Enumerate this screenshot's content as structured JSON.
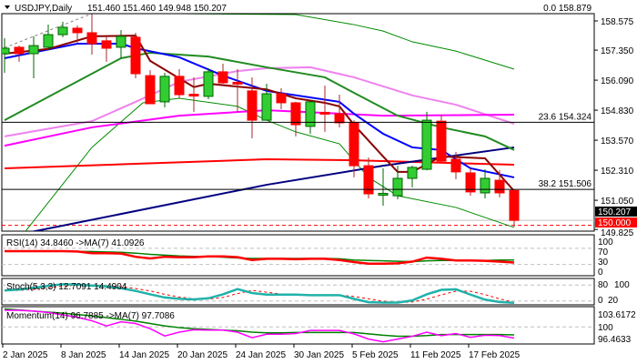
{
  "header": {
    "symbol": "USDJPY,Daily",
    "ohlc": "151.460 151.460 149.948 150.207"
  },
  "fib": [
    {
      "label": "0.0 158.879",
      "price": 158.879
    },
    {
      "label": "23.6 154.324",
      "price": 154.324
    },
    {
      "label": "38.2 151.506",
      "price": 151.506
    }
  ],
  "price_axis": [
    "158.575",
    "157.350",
    "156.090",
    "154.830",
    "153.570",
    "152.310",
    "151.050",
    "149.825"
  ],
  "price_tags": {
    "current": "150.207",
    "alert": "150.000"
  },
  "panels": {
    "rsi": {
      "title": "RSI(14) 34.8460  ->MA(7) 41.0926",
      "levels": [
        "100",
        "70",
        "30",
        "0"
      ]
    },
    "stoch": {
      "title": "Stoch(5,3,3) 12.7091 14.4904",
      "levels": [
        "80",
        "100",
        "0",
        "20"
      ]
    },
    "momentum": {
      "title": "Momentum(14) 96.7885  ->MA(7) 97.7086",
      "levels": [
        "103.6172",
        "100",
        "96.4633"
      ]
    }
  },
  "colors": {
    "bull": "#32cd32",
    "bear": "#ff0000",
    "wick_bull": "#006400",
    "wick_bear": "#a52a2a",
    "alert": "#ff0000"
  },
  "chart_data": {
    "type": "candlestick",
    "title": "USDJPY,Daily",
    "date_labels": [
      {
        "bar": 0,
        "text": "2 Jan 2025"
      },
      {
        "bar": 4,
        "text": "8 Jan 2025"
      },
      {
        "bar": 8,
        "text": "14 Jan 2025"
      },
      {
        "bar": 12,
        "text": "20 Jan 2025"
      },
      {
        "bar": 16,
        "text": "24 Jan 2025"
      },
      {
        "bar": 20,
        "text": "30 Jan 2025"
      },
      {
        "bar": 24,
        "text": "5 Feb 2025"
      },
      {
        "bar": 28,
        "text": "11 Feb 2025"
      },
      {
        "bar": 32,
        "text": "17 Feb 2025"
      }
    ],
    "ylim": [
      149.8,
      158.88
    ],
    "candles": [
      [
        157.2,
        157.85,
        156.4,
        157.43
      ],
      [
        157.47,
        157.54,
        156.86,
        157.2
      ],
      [
        157.2,
        157.93,
        156.17,
        157.54
      ],
      [
        157.47,
        158.42,
        157.35,
        158.0
      ],
      [
        158.0,
        158.54,
        157.89,
        158.31
      ],
      [
        158.27,
        158.38,
        157.62,
        158.08
      ],
      [
        158.08,
        158.88,
        157.16,
        157.62
      ],
      [
        157.74,
        157.93,
        156.86,
        157.43
      ],
      [
        157.47,
        158.19,
        157.01,
        157.93
      ],
      [
        157.89,
        158.08,
        156.17,
        156.36
      ],
      [
        156.28,
        156.51,
        155.1,
        155.1
      ],
      [
        155.18,
        156.4,
        154.95,
        156.25
      ],
      [
        156.25,
        156.55,
        155.33,
        155.48
      ],
      [
        155.5,
        156.21,
        154.76,
        155.48
      ],
      [
        155.41,
        156.59,
        155.29,
        156.44
      ],
      [
        156.44,
        156.78,
        155.94,
        155.98
      ],
      [
        156.0,
        156.55,
        154.76,
        155.98
      ],
      [
        155.64,
        156.21,
        153.65,
        154.41
      ],
      [
        154.41,
        155.94,
        154.41,
        155.52
      ],
      [
        155.52,
        155.75,
        154.87,
        155.14
      ],
      [
        155.14,
        155.18,
        153.73,
        154.22
      ],
      [
        154.15,
        155.18,
        153.84,
        155.18
      ],
      [
        154.74,
        155.86,
        153.92,
        154.72
      ],
      [
        154.68,
        155.48,
        154.11,
        154.3
      ],
      [
        154.3,
        154.41,
        152.01,
        152.5
      ],
      [
        152.5,
        152.85,
        151.13,
        151.32
      ],
      [
        151.32,
        152.39,
        150.82,
        151.34
      ],
      [
        151.24,
        152.5,
        151.09,
        151.97
      ],
      [
        151.97,
        152.5,
        151.59,
        152.43
      ],
      [
        152.35,
        154.76,
        152.31,
        154.41
      ],
      [
        154.37,
        154.64,
        152.66,
        152.69
      ],
      [
        152.77,
        153.08,
        151.93,
        152.24
      ],
      [
        152.2,
        152.39,
        151.24,
        151.4
      ],
      [
        151.36,
        152.35,
        151.13,
        151.97
      ],
      [
        151.89,
        152.31,
        151.17,
        151.36
      ],
      [
        151.46,
        151.46,
        149.948,
        150.207
      ]
    ],
    "overlays": [
      {
        "color": "#008b00",
        "width": 1,
        "points": [
          [
            9,
            159.0
          ],
          [
            12,
            158.88
          ],
          [
            20,
            158.84
          ],
          [
            24,
            158.42
          ],
          [
            26,
            158.15
          ],
          [
            28,
            157.7
          ],
          [
            31,
            157.31
          ],
          [
            35,
            156.55
          ]
        ]
      },
      {
        "color": "#008b00",
        "width": 1,
        "points": [
          [
            1.4,
            149.72
          ],
          [
            6,
            153.27
          ],
          [
            9.5,
            155.14
          ],
          [
            12,
            155.33
          ],
          [
            16,
            154.99
          ],
          [
            18,
            154.41
          ],
          [
            20,
            153.92
          ],
          [
            23,
            153.42
          ],
          [
            25,
            152.01
          ],
          [
            27,
            151.24
          ],
          [
            31,
            150.75
          ],
          [
            35,
            149.91
          ]
        ]
      },
      {
        "color": "#ee82ee",
        "width": 2,
        "points": [
          [
            0,
            153.73
          ],
          [
            6,
            154.37
          ],
          [
            9,
            155.18
          ],
          [
            12,
            156.02
          ],
          [
            16,
            156.47
          ],
          [
            18,
            156.59
          ],
          [
            21,
            156.63
          ],
          [
            24,
            156.21
          ],
          [
            28,
            155.45
          ],
          [
            31,
            155.06
          ],
          [
            35,
            154.26
          ]
        ]
      },
      {
        "color": "#ff00ff",
        "width": 2,
        "points": [
          [
            0,
            153.34
          ],
          [
            6,
            154.11
          ],
          [
            12,
            154.6
          ],
          [
            18,
            154.83
          ],
          [
            26,
            154.6
          ],
          [
            35,
            154.64
          ]
        ]
      },
      {
        "color": "#ff0000",
        "width": 2,
        "points": [
          [
            0,
            152.39
          ],
          [
            18,
            152.77
          ],
          [
            24,
            152.73
          ],
          [
            35,
            152.54
          ]
        ]
      },
      {
        "color": "#000080",
        "width": 2,
        "points": [
          [
            1,
            149.62
          ],
          [
            18,
            151.7
          ],
          [
            26,
            152.5
          ],
          [
            35,
            153.27
          ]
        ]
      },
      {
        "color": "#228b22",
        "width": 2,
        "points": [
          [
            0,
            154.41
          ],
          [
            4,
            155.71
          ],
          [
            8,
            157.01
          ],
          [
            10,
            157.24
          ],
          [
            14,
            157.08
          ],
          [
            18,
            156.63
          ],
          [
            22,
            156.21
          ],
          [
            24,
            155.56
          ],
          [
            27,
            154.6
          ],
          [
            30,
            154.11
          ],
          [
            33,
            153.73
          ],
          [
            35,
            153.16
          ]
        ]
      },
      {
        "color": "#0000ff",
        "width": 2,
        "points": [
          [
            0,
            157.01
          ],
          [
            5,
            157.62
          ],
          [
            8,
            157.62
          ],
          [
            9,
            157.43
          ],
          [
            12,
            157.05
          ],
          [
            15,
            156.28
          ],
          [
            18,
            155.64
          ],
          [
            23,
            155.18
          ],
          [
            24,
            154.68
          ],
          [
            26,
            153.84
          ],
          [
            28,
            153.27
          ],
          [
            30,
            153.16
          ],
          [
            32,
            152.39
          ],
          [
            35,
            152.01
          ]
        ]
      },
      {
        "color": "#8b0000",
        "width": 2,
        "points": [
          [
            0,
            157.2
          ],
          [
            3,
            157.4
          ],
          [
            6,
            157.93
          ],
          [
            9,
            157.96
          ],
          [
            10,
            156.9
          ],
          [
            13,
            155.8
          ],
          [
            14,
            155.94
          ],
          [
            18,
            155.7
          ],
          [
            20,
            155.33
          ],
          [
            22,
            155.14
          ],
          [
            23,
            154.99
          ],
          [
            24,
            154.22
          ],
          [
            26,
            152.89
          ],
          [
            27,
            152.24
          ],
          [
            28,
            152.24
          ],
          [
            30,
            152.89
          ],
          [
            33,
            152.81
          ],
          [
            35,
            151.44
          ]
        ]
      }
    ],
    "trendline": {
      "color": "#808080",
      "points": [
        [
          0,
          157.45
        ],
        [
          6,
          158.88
        ]
      ]
    },
    "rsi": {
      "values": [
        63,
        63,
        63,
        63,
        63,
        62,
        58,
        58,
        57,
        49,
        45,
        49,
        48,
        48,
        50,
        50,
        48,
        41,
        44,
        44,
        43,
        44,
        44,
        41,
        36,
        32,
        32,
        33,
        37,
        47,
        44,
        40,
        40,
        39,
        37,
        34.846
      ],
      "ma": [
        63,
        63,
        63,
        63,
        63,
        62,
        62,
        61,
        60,
        58,
        55,
        53,
        51,
        50,
        50,
        48,
        46,
        45,
        45,
        45,
        45,
        45,
        45,
        44,
        41,
        40,
        39,
        38,
        37,
        39,
        40,
        40,
        40,
        40,
        41,
        41.0926
      ],
      "ylim": [
        0,
        100
      ],
      "levels": [
        70,
        30
      ]
    },
    "stoch": {
      "main": [
        60,
        63,
        70,
        77,
        83,
        82,
        78,
        75,
        68,
        58,
        45,
        33,
        28,
        26,
        30,
        45,
        65,
        50,
        44,
        44,
        44,
        42,
        42,
        42,
        28,
        15,
        14,
        14,
        22,
        45,
        62,
        64,
        44,
        25,
        16,
        12.7091
      ],
      "signal": [
        58,
        60,
        64,
        70,
        76,
        80,
        80,
        78,
        74,
        67,
        58,
        45,
        35,
        28,
        27,
        33,
        48,
        60,
        53,
        46,
        44,
        43,
        42,
        42,
        37,
        28,
        19,
        14,
        16,
        27,
        43,
        57,
        57,
        44,
        28,
        14.4904
      ],
      "ylim": [
        0,
        100
      ],
      "levels": [
        80,
        20
      ]
    },
    "momentum": {
      "values": [
        104.8,
        104.8,
        104.6,
        104.2,
        103.5,
        102.8,
        101.8,
        100.3,
        101.5,
        101.0,
        99.5,
        97.4,
        98.5,
        99.2,
        99.1,
        99.1,
        98.5,
        96.9,
        97.9,
        97.9,
        98.1,
        99.0,
        99.0,
        99.0,
        98.0,
        96.5,
        95.7,
        96.5,
        97.3,
        98.5,
        97.5,
        98.1,
        97.0,
        97.6,
        97.5,
        96.7885
      ],
      "ma": [
        105.2,
        104.9,
        104.6,
        104.3,
        104.0,
        103.6,
        103.2,
        102.7,
        102.2,
        101.7,
        101.0,
        100.3,
        99.8,
        99.5,
        99.3,
        99.1,
        98.9,
        98.5,
        98.3,
        98.3,
        98.4,
        98.4,
        98.4,
        98.4,
        98.4,
        98.0,
        97.6,
        97.3,
        97.3,
        97.5,
        97.8,
        97.8,
        97.8,
        97.8,
        97.8,
        97.7086
      ],
      "level": 100
    }
  }
}
